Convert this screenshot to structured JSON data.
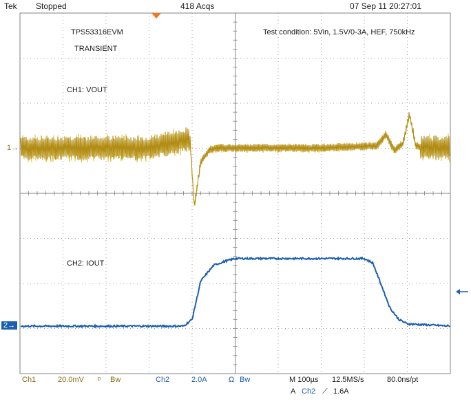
{
  "header": {
    "brand": "Tek",
    "run_state": "Stopped",
    "acquisitions": "418 Acqs",
    "timestamp": "07 Sep 11 20:27:01"
  },
  "annotations": {
    "device": "TPS53316EVM",
    "test_type": "TRANSIENT",
    "test_condition": "Test condition: 5Vin, 1.5V/0-3A, HEF, 750kHz",
    "ch1_label": "CH1: VOUT",
    "ch2_label": "CH2: IOUT"
  },
  "markers": {
    "ch1_ground": "1",
    "ch2_ground": "2"
  },
  "status": {
    "ch1_name": "Ch1",
    "ch1_scale": "20.0mV",
    "ch1_bw": "Bw",
    "ch2_name": "Ch2",
    "ch2_scale": "2.0A",
    "ch2_coupling": "Ω",
    "ch2_bw": "Bw",
    "timebase": "M 100µs",
    "sample_rate": "12.5MS/s",
    "resolution": "80.0ns/pt",
    "trigger_prefix": "A",
    "trigger_source": "Ch2",
    "trigger_level": "1.6A"
  },
  "colors": {
    "ch1_trace": "#b08a12",
    "ch1_trace_light": "#d9c24a",
    "ch1_trace_dark": "#8a3a10",
    "ch2_trace": "#1b5fb0",
    "trigger_marker": "#f07a20",
    "grid": "#808080"
  },
  "chart_data": [
    {
      "type": "line",
      "title": "CH1: VOUT",
      "series": [
        {
          "name": "CH1: VOUT",
          "description_units": "divisions relative to ch1 ground marker",
          "x": [
            -5.0,
            -2.0,
            -1.05,
            -0.95,
            -0.8,
            -0.6,
            -0.4,
            0.0,
            2.0,
            3.3,
            3.5,
            3.7,
            3.9,
            4.05,
            4.2,
            4.5,
            5.0
          ],
          "y": [
            0.0,
            0.0,
            0.2,
            -1.3,
            -0.3,
            -0.05,
            0.0,
            0.0,
            0.0,
            0.05,
            0.3,
            -0.05,
            0.1,
            0.75,
            0.05,
            0.0,
            0.0
          ]
        }
      ]
    },
    {
      "type": "line",
      "title": "CH2: IOUT",
      "series": [
        {
          "name": "CH2: IOUT",
          "description_units": "A",
          "x": [
            -5.0,
            -1.2,
            -1.0,
            -0.8,
            -0.5,
            -0.2,
            0.0,
            2.0,
            3.0,
            3.2,
            3.4,
            3.6,
            3.8,
            4.0,
            5.0
          ],
          "y": [
            0.0,
            0.0,
            0.3,
            2.0,
            2.7,
            2.9,
            3.0,
            3.0,
            3.0,
            2.8,
            1.8,
            0.8,
            0.3,
            0.1,
            0.0
          ]
        }
      ]
    }
  ]
}
